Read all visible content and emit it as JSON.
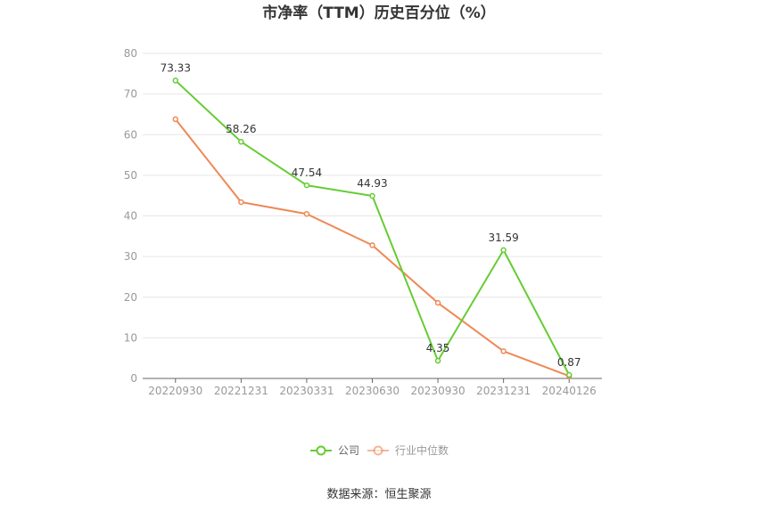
{
  "chart_data": {
    "type": "line",
    "title": "市净率（TTM）历史百分位（%）",
    "categories": [
      "20220930",
      "20221231",
      "20230331",
      "20230630",
      "20230930",
      "20231231",
      "20240126"
    ],
    "series": [
      {
        "name": "公司",
        "color": "#66cc33",
        "values": [
          73.33,
          58.26,
          47.54,
          44.93,
          4.35,
          31.59,
          0.87
        ],
        "labels": [
          "73.33",
          "58.26",
          "47.54",
          "44.93",
          "4.35",
          "31.59",
          "0.87"
        ]
      },
      {
        "name": "行业中位数",
        "color": "#ee8855",
        "values": [
          63.8,
          43.4,
          40.5,
          32.8,
          18.6,
          6.7,
          0.6
        ]
      }
    ],
    "y_ticks": [
      "0",
      "10",
      "20",
      "30",
      "40",
      "50",
      "60",
      "70",
      "80"
    ],
    "ylim": [
      0,
      80
    ],
    "grid": true,
    "legend_position": "bottom"
  },
  "source_text": "数据来源：恒生聚源"
}
